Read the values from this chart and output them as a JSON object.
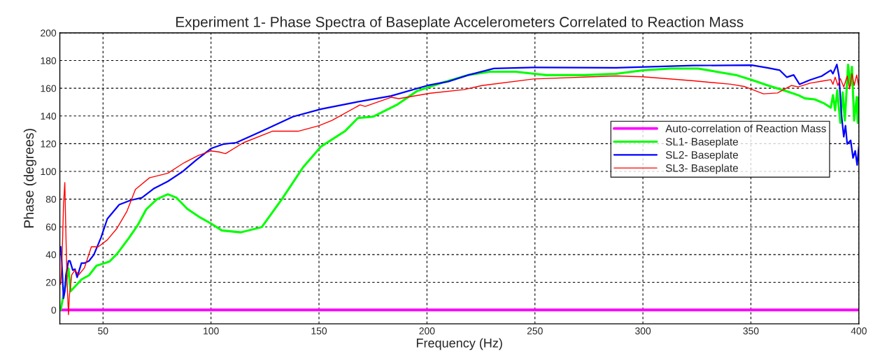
{
  "chart_data": {
    "type": "line",
    "title": "Experiment 1- Phase Spectra of Baseplate Accelerometers Correlated to Reaction Mass",
    "xlabel": "Frequency (Hz)",
    "ylabel": "Phase (degrees)",
    "xlim": [
      30,
      400
    ],
    "ylim": [
      -10,
      200
    ],
    "xticks": [
      50,
      100,
      150,
      200,
      250,
      300,
      350,
      400
    ],
    "yticks": [
      0,
      20,
      40,
      60,
      80,
      100,
      120,
      140,
      160,
      180,
      200
    ],
    "grid": true,
    "legend": "right",
    "line_style": "solid",
    "marker": "none",
    "series": [
      {
        "name": "Auto-correlation of Reaction Mass",
        "color": "#ff00ff",
        "x": [
          30,
          400
        ],
        "values": [
          0,
          0
        ]
      },
      {
        "name": "SL1- Baseplate",
        "color": "#00ff00",
        "x": [
          30.4,
          34,
          35,
          38,
          40,
          43.5,
          47,
          50,
          53,
          56.5,
          62,
          66,
          70,
          75,
          80,
          84,
          89,
          95,
          100,
          105,
          113.8,
          123.5,
          133,
          142.6,
          151,
          162,
          168,
          175,
          186,
          195.4,
          207,
          219,
          229,
          241,
          255.4,
          273,
          287.5,
          300,
          312.7,
          325.6,
          334,
          343,
          350.4,
          358,
          366.6,
          372,
          375,
          379.5,
          384,
          387,
          388,
          389,
          390,
          391.4,
          392.5,
          393.5,
          395,
          396,
          396.8,
          397.8,
          399,
          399.5,
          400
        ],
        "values": [
          0,
          30,
          13.5,
          18.6,
          22,
          25,
          32,
          33.4,
          35,
          40.5,
          52,
          61,
          72.6,
          80,
          83.5,
          81,
          73,
          66.7,
          62.4,
          57.4,
          56,
          59.8,
          80.4,
          102.9,
          118,
          129,
          138.5,
          139.5,
          148,
          158,
          164,
          169.5,
          172,
          172,
          169.5,
          169.5,
          170.4,
          173,
          174.2,
          174.2,
          172,
          169.6,
          166,
          162,
          157.8,
          155,
          152.7,
          152,
          149,
          146,
          155,
          144,
          158.6,
          135,
          157,
          136.7,
          177,
          162,
          175.5,
          136.7,
          153.6,
          135,
          153.6
        ]
      },
      {
        "name": "SL2- Baseplate",
        "color": "#0000ff",
        "x": [
          30.4,
          30.9,
          31.7,
          32.3,
          32.8,
          34,
          34.7,
          36,
          37,
          38,
          40,
          41.4,
          43.5,
          45.7,
          49,
          52,
          57.5,
          63,
          68,
          73.7,
          80,
          86.6,
          93,
          100,
          106,
          111.6,
          123.5,
          138,
          151,
          166.6,
          183.4,
          200.2,
          209.8,
          219,
          231,
          249.4,
          287.5,
          323.5,
          350.4,
          358,
          363.4,
          366.6,
          369.8,
          372.5,
          377.4,
          382.8,
          387,
          388,
          389.8,
          390.8,
          392,
          393,
          393.8,
          394.6,
          396.2,
          397.3,
          398.3,
          399.2,
          400
        ],
        "values": [
          45.6,
          35,
          8.4,
          13.5,
          25,
          35.4,
          35.4,
          28.7,
          29.5,
          23.6,
          33.8,
          33.8,
          35.4,
          39.7,
          52,
          65.8,
          76,
          79.3,
          81,
          87.8,
          92.8,
          99.6,
          108,
          116.5,
          119.8,
          120.7,
          129,
          139.5,
          145,
          149.8,
          154.5,
          162,
          164.8,
          169.5,
          174.3,
          175,
          174.8,
          176.4,
          176.7,
          174.7,
          173,
          168,
          169.6,
          162.9,
          166,
          168.8,
          173,
          170.5,
          177.2,
          168.8,
          140,
          125,
          133,
          119.8,
          122.4,
          109.7,
          114.8,
          104.6,
          118
        ]
      },
      {
        "name": "SL3- Baseplate",
        "color": "#ff0000",
        "x": [
          30.4,
          30.9,
          31.3,
          31.7,
          32.3,
          32.8,
          33.3,
          34,
          34.4,
          35.5,
          37,
          38.7,
          41.4,
          44.6,
          47.8,
          52,
          56.5,
          61,
          65,
          71.5,
          80,
          87.6,
          94,
          100,
          103.8,
          106.7,
          115,
          128.4,
          140.4,
          150,
          156,
          169,
          171.4,
          183.4,
          187,
          201.5,
          217,
          225.5,
          249.4,
          287.5,
          300,
          323.5,
          340.7,
          347.2,
          355.8,
          362.3,
          368.8,
          372,
          377.4,
          383.8,
          387,
          388,
          389,
          390.3,
          391.4,
          393,
          394.6,
          395.7,
          396.8,
          397.8,
          399,
          400
        ],
        "values": [
          18.6,
          32,
          52.3,
          76,
          92,
          55.7,
          22,
          -3.4,
          10,
          25.3,
          28.7,
          25.3,
          30.4,
          45.6,
          45.6,
          50.6,
          59,
          71,
          87,
          95.4,
          98.7,
          106.3,
          111.4,
          114.8,
          114,
          112.8,
          120.7,
          129,
          129,
          133,
          136.8,
          148,
          146.9,
          153.5,
          152.5,
          156.4,
          159,
          162,
          166.7,
          168.9,
          168.3,
          165.4,
          162.9,
          161.2,
          156,
          156.6,
          162,
          161,
          163.7,
          165.4,
          166.2,
          162.9,
          168,
          162,
          167,
          161,
          168.8,
          159.5,
          170.5,
          162,
          169.6,
          160.3
        ]
      }
    ]
  }
}
